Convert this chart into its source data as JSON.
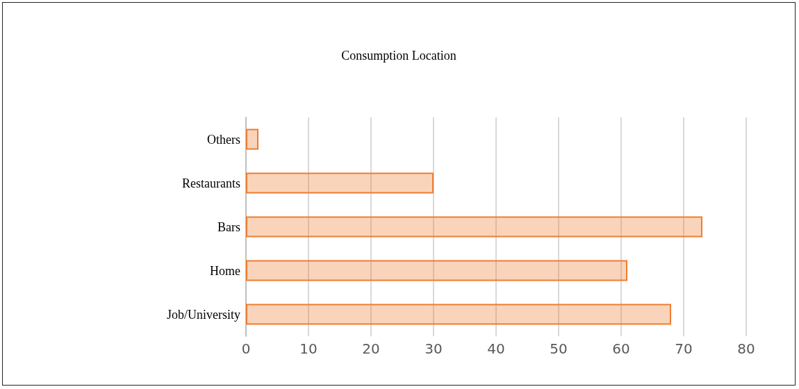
{
  "chart_data": {
    "type": "bar",
    "title": "Consumption Location",
    "orientation": "horizontal",
    "categories": [
      "Others",
      "Restaurants",
      "Bars",
      "Home",
      "Job/University"
    ],
    "values": [
      2,
      30,
      73,
      61,
      68
    ],
    "color": "#ed7d31",
    "xlim": [
      0,
      80
    ],
    "xticks": [
      0,
      10,
      20,
      30,
      40,
      50,
      60,
      70,
      80
    ],
    "grid": "x"
  }
}
